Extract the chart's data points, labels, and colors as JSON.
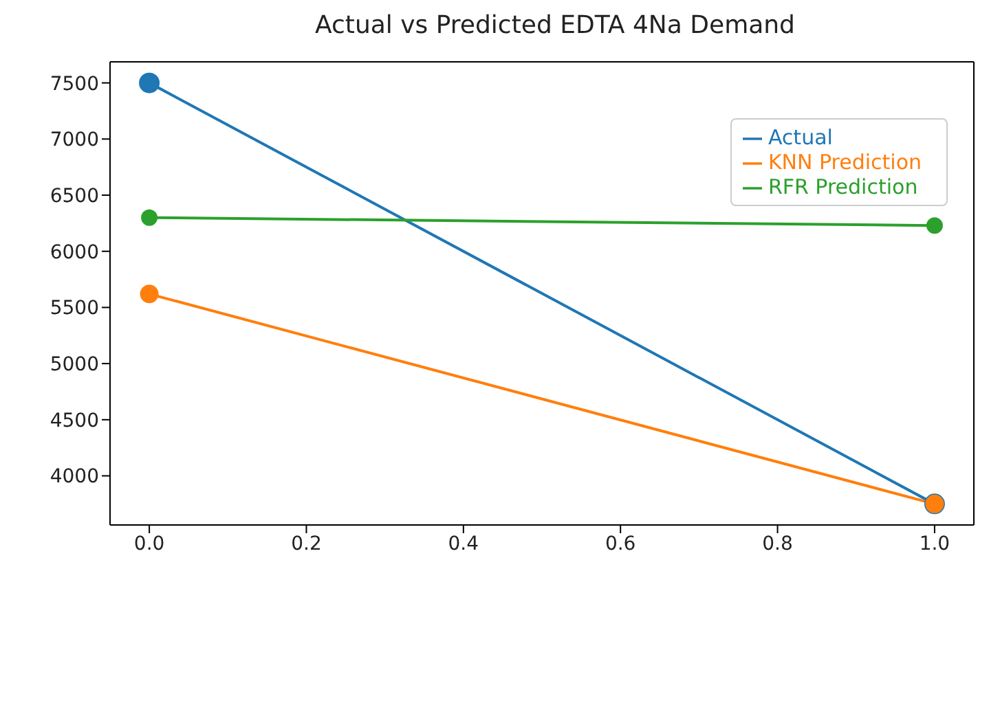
{
  "chart_data": {
    "type": "line",
    "title": "Actual vs Predicted EDTA 4Na Demand",
    "x": [
      0,
      1
    ],
    "series": [
      {
        "name": "Actual",
        "color": "#1f77b4",
        "values": [
          7500,
          3750
        ]
      },
      {
        "name": "KNN Prediction",
        "color": "#ff7f0e",
        "values": [
          5620,
          3750
        ]
      },
      {
        "name": "RFR Prediction",
        "color": "#2ca02c",
        "values": [
          6300,
          6230
        ]
      }
    ],
    "xlim": [
      -0.05,
      1.05
    ],
    "xticks": [
      {
        "value": 0,
        "label": "0.0"
      },
      {
        "value": 0.2,
        "label": "0.2"
      },
      {
        "value": 0.4,
        "label": "0.4"
      },
      {
        "value": 0.6,
        "label": "0.6"
      },
      {
        "value": 0.8,
        "label": "0.8"
      },
      {
        "value": 1,
        "label": "1.0"
      }
    ],
    "ylim": [
      3562.5,
      7687.5
    ],
    "yticks": [
      4000,
      4500,
      5000,
      5500,
      6000,
      6500,
      7000,
      7500
    ],
    "marker": "circle",
    "line_style": "solid",
    "legend": "top right",
    "grid": false
  }
}
